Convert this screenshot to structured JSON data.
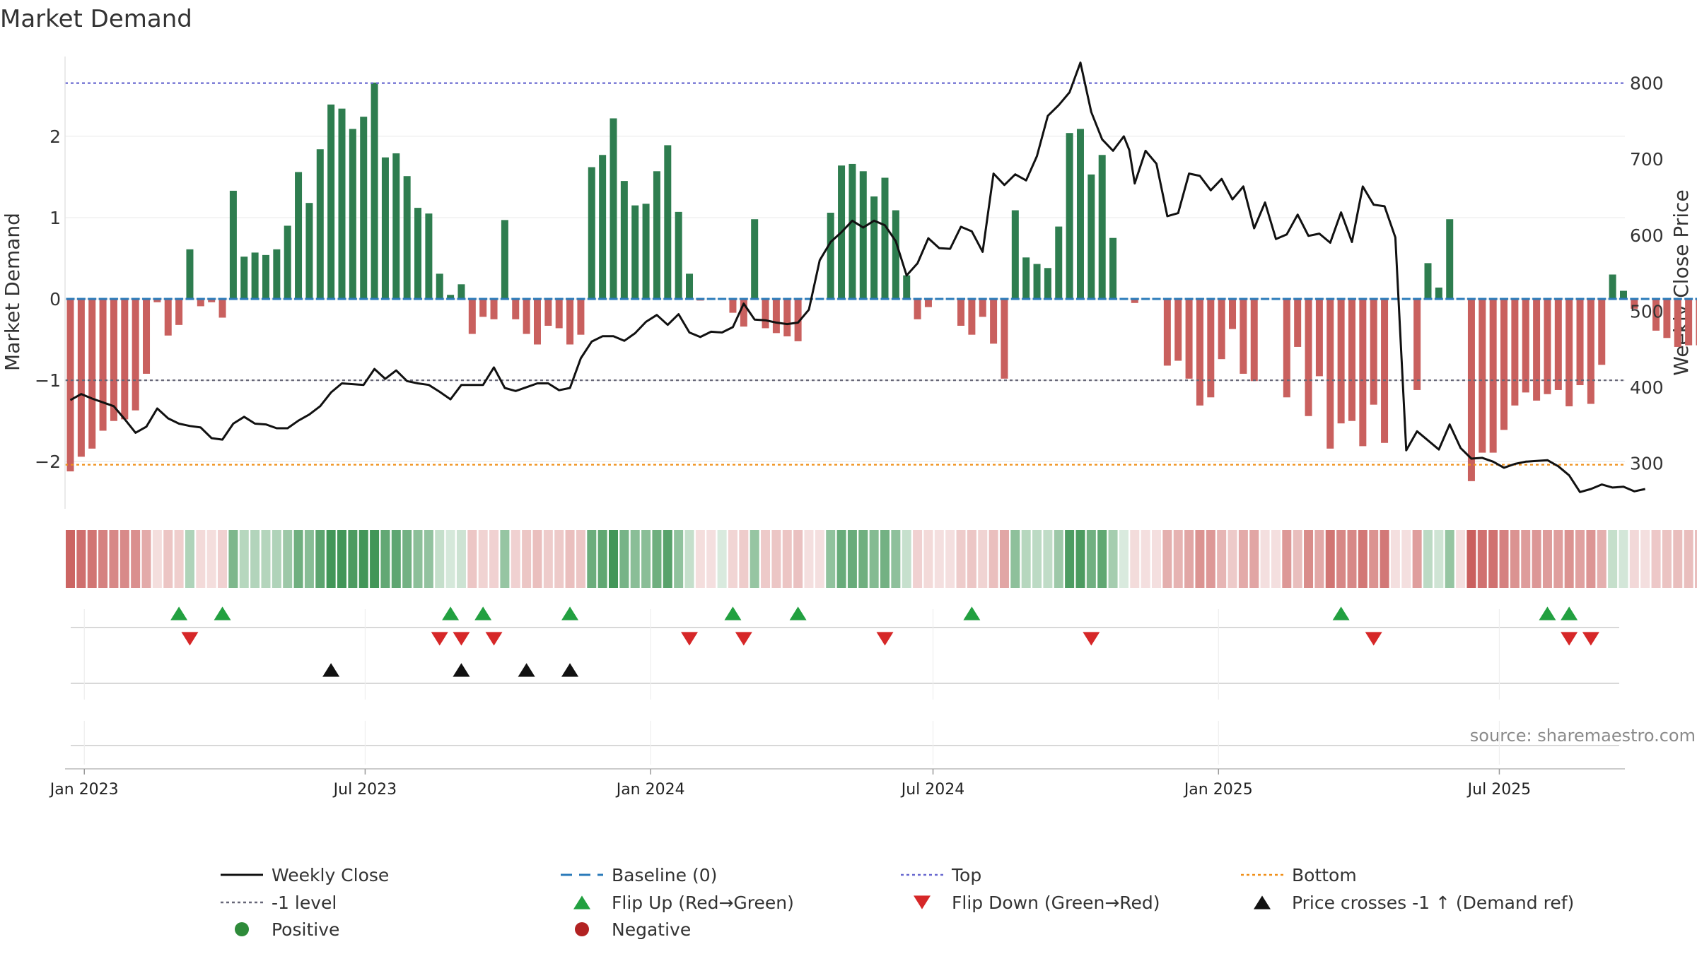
{
  "chart_data": {
    "type": "bar+line",
    "title": "Market Demand",
    "ylabel_left": "Market Demand",
    "ylabel_right": "Weekly Close Price",
    "source": "source: sharemaestro.com",
    "x_start": "2022-12-23",
    "x_step_days": 7,
    "ylim_left": [
      -2.58,
      2.98
    ],
    "ylim_right": [
      240,
      835
    ],
    "left_ticks": [
      {
        "v": -2,
        "label": "−2"
      },
      {
        "v": -1,
        "label": "−1"
      },
      {
        "v": 0,
        "label": "0"
      },
      {
        "v": 1,
        "label": "1"
      },
      {
        "v": 2,
        "label": "2"
      }
    ],
    "right_ticks": [
      {
        "v": 300,
        "label": "300"
      },
      {
        "v": 400,
        "label": "400"
      },
      {
        "v": 500,
        "label": "500"
      },
      {
        "v": 600,
        "label": "600"
      },
      {
        "v": 700,
        "label": "700"
      },
      {
        "v": 800,
        "label": "800"
      }
    ],
    "x_ticks": [
      {
        "label": "Jan 2023",
        "date": "2023-01-01"
      },
      {
        "label": "Jul 2023",
        "date": "2023-07-01"
      },
      {
        "label": "Jan 2024",
        "date": "2024-01-01"
      },
      {
        "label": "Jul 2024",
        "date": "2024-07-01"
      },
      {
        "label": "Jan 2025",
        "date": "2025-01-01"
      },
      {
        "label": "Jul 2025",
        "date": "2025-07-01"
      }
    ],
    "reference_lines": {
      "top_close": 800,
      "bottom_close": 298,
      "minus1_level": -1,
      "baseline": 0
    },
    "demand": [
      -2.12,
      -1.94,
      -1.84,
      -1.62,
      -1.5,
      -1.48,
      -1.37,
      -0.92,
      -0.04,
      -0.45,
      -0.32,
      0.61,
      -0.09,
      -0.04,
      -0.23,
      1.33,
      0.52,
      0.57,
      0.54,
      0.61,
      0.9,
      1.56,
      1.18,
      1.84,
      2.39,
      2.34,
      2.09,
      2.24,
      2.66,
      1.74,
      1.79,
      1.51,
      1.12,
      1.05,
      0.31,
      0.05,
      0.18,
      -0.43,
      -0.22,
      -0.25,
      0.97,
      -0.25,
      -0.43,
      -0.56,
      -0.33,
      -0.36,
      -0.56,
      -0.44,
      1.62,
      1.77,
      2.22,
      1.45,
      1.15,
      1.17,
      1.57,
      1.89,
      1.07,
      0.31,
      -0.02,
      0,
      0.01,
      -0.17,
      -0.34,
      0.98,
      -0.36,
      -0.42,
      -0.46,
      -0.52,
      0,
      0,
      1.06,
      1.64,
      1.66,
      1.57,
      1.26,
      1.49,
      1.09,
      0.29,
      -0.25,
      -0.1,
      0,
      0,
      -0.33,
      -0.44,
      -0.22,
      -0.55,
      -0.98,
      1.09,
      0.51,
      0.43,
      0.38,
      0.89,
      2.04,
      2.09,
      1.53,
      1.77,
      0.75,
      0.01,
      -0.05,
      0,
      0,
      -0.82,
      -0.76,
      -0.98,
      -1.31,
      -1.21,
      -0.74,
      -0.37,
      -0.92,
      -1.01,
      0,
      0,
      -1.21,
      -0.59,
      -1.44,
      -0.95,
      -1.84,
      -1.53,
      -1.5,
      -1.81,
      -1.3,
      -1.77,
      0,
      0,
      -1.12,
      0.44,
      0.14,
      0.98,
      0,
      -2.24,
      -1.89,
      -1.89,
      -1.61,
      -1.31,
      -1.15,
      -1.25,
      -1.17,
      -1.12,
      -1.32,
      -1.06,
      -1.29,
      -0.81,
      0.3,
      0.1,
      -0.12,
      0,
      -0.39,
      -0.48,
      -0.59,
      -0.57,
      -0.57
    ],
    "close": [
      {
        "w": 0,
        "v": 383
      },
      {
        "w": 1,
        "v": 391
      },
      {
        "w": 2,
        "v": 385
      },
      {
        "w": 3,
        "v": 380
      },
      {
        "w": 4,
        "v": 375
      },
      {
        "w": 5,
        "v": 358
      },
      {
        "w": 6,
        "v": 340
      },
      {
        "w": 7,
        "v": 348
      },
      {
        "w": 8,
        "v": 372
      },
      {
        "w": 9,
        "v": 359
      },
      {
        "w": 10,
        "v": 352
      },
      {
        "w": 11,
        "v": 349
      },
      {
        "w": 12,
        "v": 347
      },
      {
        "w": 13,
        "v": 333
      },
      {
        "w": 14,
        "v": 331
      },
      {
        "w": 15,
        "v": 352
      },
      {
        "w": 16,
        "v": 361
      },
      {
        "w": 17,
        "v": 352
      },
      {
        "w": 18,
        "v": 351
      },
      {
        "w": 19,
        "v": 346
      },
      {
        "w": 20,
        "v": 346
      },
      {
        "w": 21,
        "v": 356
      },
      {
        "w": 22,
        "v": 364
      },
      {
        "w": 23,
        "v": 375
      },
      {
        "w": 24,
        "v": 393
      },
      {
        "w": 25,
        "v": 405
      },
      {
        "w": 26,
        "v": 404
      },
      {
        "w": 27,
        "v": 403
      },
      {
        "w": 28,
        "v": 424
      },
      {
        "w": 29,
        "v": 411
      },
      {
        "w": 30,
        "v": 422
      },
      {
        "w": 31,
        "v": 408
      },
      {
        "w": 32,
        "v": 405
      },
      {
        "w": 33,
        "v": 403
      },
      {
        "w": 34,
        "v": 394
      },
      {
        "w": 35,
        "v": 384
      },
      {
        "w": 36,
        "v": 403
      },
      {
        "w": 37,
        "v": 403
      },
      {
        "w": 38,
        "v": 403
      },
      {
        "w": 39,
        "v": 426
      },
      {
        "w": 40,
        "v": 399
      },
      {
        "w": 41,
        "v": 395
      },
      {
        "w": 42,
        "v": 400
      },
      {
        "w": 43,
        "v": 405
      },
      {
        "w": 44,
        "v": 405
      },
      {
        "w": 45,
        "v": 396
      },
      {
        "w": 46,
        "v": 399
      },
      {
        "w": 47,
        "v": 438
      },
      {
        "w": 48,
        "v": 460
      },
      {
        "w": 49,
        "v": 467
      },
      {
        "w": 50,
        "v": 467
      },
      {
        "w": 51,
        "v": 461
      },
      {
        "w": 52,
        "v": 471
      },
      {
        "w": 53,
        "v": 486
      },
      {
        "w": 54,
        "v": 495
      },
      {
        "w": 55,
        "v": 482
      },
      {
        "w": 56,
        "v": 496
      },
      {
        "w": 57,
        "v": 472
      },
      {
        "w": 58,
        "v": 466
      },
      {
        "w": 59,
        "v": 473
      },
      {
        "w": 60,
        "v": 472
      },
      {
        "w": 61,
        "v": 479
      },
      {
        "w": 62,
        "v": 510
      },
      {
        "w": 63,
        "v": 489
      },
      {
        "w": 64,
        "v": 488
      },
      {
        "w": 65,
        "v": 485
      },
      {
        "w": 66,
        "v": 483
      },
      {
        "w": 67,
        "v": 485
      },
      {
        "w": 68,
        "v": 502
      },
      {
        "w": 69,
        "v": 567
      },
      {
        "w": 70,
        "v": 591
      },
      {
        "w": 71,
        "v": 604
      },
      {
        "w": 72,
        "v": 619
      },
      {
        "w": 73,
        "v": 610
      },
      {
        "w": 74,
        "v": 619
      },
      {
        "w": 75,
        "v": 613
      },
      {
        "w": 76,
        "v": 592
      },
      {
        "w": 77,
        "v": 547
      },
      {
        "w": 78,
        "v": 563
      },
      {
        "w": 79,
        "v": 596
      },
      {
        "w": 80,
        "v": 583
      },
      {
        "w": 81,
        "v": 582
      },
      {
        "w": 82,
        "v": 611
      },
      {
        "w": 83,
        "v": 605
      },
      {
        "w": 84,
        "v": 578
      },
      {
        "w": 85,
        "v": 681
      },
      {
        "w": 86,
        "v": 666
      },
      {
        "w": 87,
        "v": 680
      },
      {
        "w": 88,
        "v": 672
      },
      {
        "w": 89,
        "v": 704
      },
      {
        "w": 90,
        "v": 757
      },
      {
        "w": 91,
        "v": 771
      },
      {
        "w": 92,
        "v": 788
      },
      {
        "w": 93,
        "v": 827
      },
      {
        "w": 94,
        "v": 762
      },
      {
        "w": 95,
        "v": 726
      },
      {
        "w": 96,
        "v": 711
      },
      {
        "w": 97,
        "v": 730
      },
      {
        "w": 97.5,
        "v": 712
      },
      {
        "w": 98,
        "v": 668
      },
      {
        "w": 99,
        "v": 711
      },
      {
        "w": 100,
        "v": 694
      },
      {
        "w": 101,
        "v": 625
      },
      {
        "w": 102,
        "v": 629
      },
      {
        "w": 103,
        "v": 681
      },
      {
        "w": 104,
        "v": 678
      },
      {
        "w": 105,
        "v": 659
      },
      {
        "w": 106,
        "v": 674
      },
      {
        "w": 107,
        "v": 647
      },
      {
        "w": 108,
        "v": 664
      },
      {
        "w": 109,
        "v": 609
      },
      {
        "w": 110,
        "v": 643
      },
      {
        "w": 111,
        "v": 595
      },
      {
        "w": 112,
        "v": 601
      },
      {
        "w": 113,
        "v": 627
      },
      {
        "w": 114,
        "v": 599
      },
      {
        "w": 115,
        "v": 602
      },
      {
        "w": 116,
        "v": 590
      },
      {
        "w": 117,
        "v": 630
      },
      {
        "w": 118,
        "v": 591
      },
      {
        "w": 119,
        "v": 664
      },
      {
        "w": 120,
        "v": 640
      },
      {
        "w": 121,
        "v": 638
      },
      {
        "w": 122,
        "v": 597
      },
      {
        "w": 123,
        "v": 317
      },
      {
        "w": 124,
        "v": 342
      },
      {
        "w": 125,
        "v": 330
      },
      {
        "w": 126,
        "v": 318
      },
      {
        "w": 127,
        "v": 351
      },
      {
        "w": 128,
        "v": 320
      },
      {
        "w": 129,
        "v": 306
      },
      {
        "w": 130,
        "v": 307
      },
      {
        "w": 131,
        "v": 302
      },
      {
        "w": 132,
        "v": 294
      },
      {
        "w": 133,
        "v": 299
      },
      {
        "w": 134,
        "v": 302
      },
      {
        "w": 135,
        "v": 303
      },
      {
        "w": 136,
        "v": 304
      },
      {
        "w": 137,
        "v": 296
      },
      {
        "w": 138,
        "v": 284
      },
      {
        "w": 139,
        "v": 262
      },
      {
        "w": 140,
        "v": 266
      },
      {
        "w": 141,
        "v": 272
      },
      {
        "w": 142,
        "v": 268
      },
      {
        "w": 143,
        "v": 269
      },
      {
        "w": 144,
        "v": 263
      },
      {
        "w": 145,
        "v": 266
      }
    ],
    "flip_up_weeks": [
      10,
      14,
      35,
      38,
      46,
      61,
      67,
      83,
      117,
      136,
      138
    ],
    "flip_down_weeks": [
      11,
      34,
      36,
      39,
      57,
      62,
      75,
      94,
      120,
      138,
      140
    ],
    "price_cross_weeks": [
      24,
      36,
      42,
      46
    ],
    "legend": [
      {
        "label": "Weekly Close",
        "symbol": "line-solid",
        "color": "#111111"
      },
      {
        "label": "Baseline (0)",
        "symbol": "line-dash",
        "color": "#2b7bba"
      },
      {
        "label": "Top",
        "symbol": "line-dot",
        "color": "#6a6ad0"
      },
      {
        "label": "Bottom",
        "symbol": "line-dot",
        "color": "#f0901a"
      },
      {
        "label": "-1 level",
        "symbol": "line-dot",
        "color": "#666677"
      },
      {
        "label": "Flip Up (Red→Green)",
        "symbol": "triangle-up",
        "color": "#22a040"
      },
      {
        "label": "Flip Down (Green→Red)",
        "symbol": "triangle-down",
        "color": "#d62728"
      },
      {
        "label": "Price crosses -1 ↑ (Demand ref)",
        "symbol": "triangle-up",
        "color": "#111111"
      },
      {
        "label": "Positive",
        "symbol": "circle",
        "color": "#2e8b3a"
      },
      {
        "label": "Negative",
        "symbol": "circle",
        "color": "#b22222"
      }
    ],
    "colors": {
      "positive_bar": "#2e7d4f",
      "negative_bar": "#c9605e",
      "baseline_seg": "#2b7bba"
    }
  }
}
